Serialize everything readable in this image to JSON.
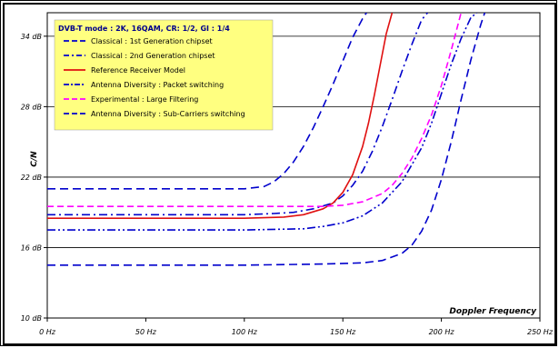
{
  "chart_data": {
    "type": "line",
    "title": "",
    "xlabel": "Doppler Frequency",
    "ylabel": "C/N",
    "xlim": [
      0,
      250
    ],
    "ylim": [
      10,
      36
    ],
    "x_ticks": [
      0,
      50,
      100,
      150,
      200,
      250
    ],
    "x_tick_labels": [
      "0 Hz",
      "50 Hz",
      "100 Hz",
      "150 Hz",
      "200 Hz",
      "250 Hz"
    ],
    "y_ticks": [
      10,
      16,
      22,
      28,
      34
    ],
    "y_tick_labels": [
      "10 dB",
      "16 dB",
      "22 dB",
      "28 dB",
      "34 dB"
    ],
    "grid": "horizontal",
    "legend": {
      "title": "DVB-T mode :  2K, 16QAM, CR: 1/2,  GI : 1/4",
      "placement": "top-left"
    },
    "series": [
      {
        "name": "Classical : 1st Generation chipset",
        "color": "#0000cc",
        "dash": "long-dash",
        "x": [
          0,
          50,
          100,
          110,
          115,
          120,
          125,
          130,
          135,
          140,
          145,
          150,
          155,
          160,
          162
        ],
        "y": [
          21.0,
          21.0,
          21.0,
          21.2,
          21.6,
          22.3,
          23.3,
          24.6,
          26.2,
          28.0,
          29.9,
          31.9,
          33.9,
          35.5,
          36.0
        ]
      },
      {
        "name": "Classical : 2nd Generation chipset",
        "color": "#0000cc",
        "dash": "dash-dot",
        "x": [
          0,
          50,
          100,
          115,
          125,
          135,
          145,
          150,
          155,
          160,
          165,
          170,
          175,
          180,
          185,
          190,
          193
        ],
        "y": [
          18.8,
          18.8,
          18.8,
          18.9,
          19.0,
          19.3,
          19.8,
          20.4,
          21.3,
          22.5,
          24.2,
          26.3,
          28.6,
          31.0,
          33.3,
          35.4,
          36.0
        ]
      },
      {
        "name": "Reference Receiver Model",
        "color": "#e01010",
        "dash": "solid",
        "x": [
          0,
          50,
          100,
          120,
          130,
          140,
          145,
          150,
          155,
          160,
          163,
          166,
          169,
          172,
          175
        ],
        "y": [
          18.5,
          18.5,
          18.5,
          18.6,
          18.8,
          19.3,
          19.8,
          20.7,
          22.2,
          24.6,
          26.6,
          29.0,
          31.6,
          34.2,
          36.0
        ]
      },
      {
        "name": "Antenna Diversity : Packet switching",
        "color": "#0000cc",
        "dash": "dash-dot-dot",
        "x": [
          0,
          50,
          100,
          130,
          140,
          150,
          160,
          170,
          180,
          190,
          195,
          200,
          205,
          210,
          215,
          218
        ],
        "y": [
          17.5,
          17.5,
          17.5,
          17.6,
          17.8,
          18.1,
          18.7,
          19.8,
          21.6,
          24.5,
          26.6,
          29.1,
          31.6,
          33.8,
          35.6,
          36.0
        ]
      },
      {
        "name": "Experimental : Large Filtering",
        "color": "#ff00ff",
        "dash": "dash",
        "x": [
          0,
          50,
          100,
          140,
          150,
          160,
          170,
          175,
          180,
          185,
          190,
          195,
          200,
          205,
          210
        ],
        "y": [
          19.5,
          19.5,
          19.5,
          19.5,
          19.6,
          19.9,
          20.6,
          21.3,
          22.3,
          23.6,
          25.3,
          27.3,
          29.8,
          32.8,
          36.0
        ]
      },
      {
        "name": "Antenna Diversity : Sub-Carriers switching",
        "color": "#0000cc",
        "dash": "long-dash",
        "x": [
          0,
          50,
          100,
          140,
          160,
          170,
          180,
          185,
          190,
          195,
          200,
          205,
          210,
          215,
          220,
          222
        ],
        "y": [
          14.5,
          14.5,
          14.5,
          14.6,
          14.7,
          14.9,
          15.5,
          16.2,
          17.4,
          19.2,
          21.8,
          25.0,
          28.6,
          32.0,
          35.0,
          36.0
        ]
      }
    ]
  }
}
